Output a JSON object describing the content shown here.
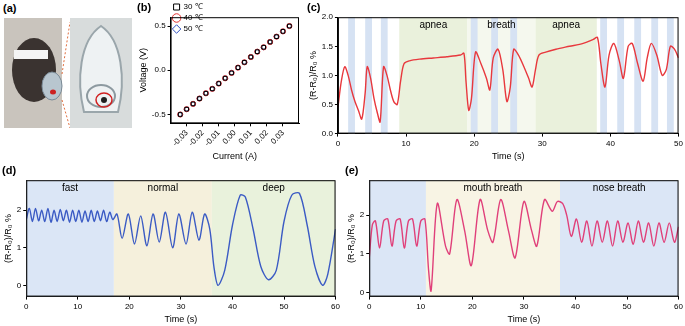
{
  "chart_data": [
    {
      "type": "image",
      "title": "(a)"
    },
    {
      "type": "scatter",
      "title": "(b)",
      "x_label": "Current (A)",
      "y_label": "Voltage (V)",
      "x": [
        -0.034,
        -0.03,
        -0.026,
        -0.022,
        -0.018,
        -0.014,
        -0.01,
        -0.006,
        -0.002,
        0.002,
        0.006,
        0.01,
        0.014,
        0.018,
        0.022,
        0.026,
        0.03,
        0.034
      ],
      "series": [
        {
          "name": "30 ℃",
          "color": "#000000",
          "marker": "square",
          "values": [
            -0.5,
            -0.44,
            -0.38,
            -0.32,
            -0.26,
            -0.21,
            -0.15,
            -0.09,
            -0.03,
            0.03,
            0.09,
            0.15,
            0.21,
            0.26,
            0.32,
            0.38,
            0.44,
            0.5
          ]
        },
        {
          "name": "40 ℃",
          "color": "#e03030",
          "marker": "circle",
          "values": [
            -0.5,
            -0.44,
            -0.38,
            -0.32,
            -0.26,
            -0.21,
            -0.15,
            -0.09,
            -0.03,
            0.03,
            0.09,
            0.15,
            0.21,
            0.26,
            0.32,
            0.38,
            0.44,
            0.5
          ]
        },
        {
          "name": "50 ℃",
          "color": "#3050c0",
          "marker": "diamond",
          "values": [
            -0.5,
            -0.44,
            -0.38,
            -0.32,
            -0.26,
            -0.21,
            -0.15,
            -0.09,
            -0.03,
            0.03,
            0.09,
            0.15,
            0.21,
            0.26,
            0.32,
            0.38,
            0.44,
            0.5
          ]
        }
      ],
      "xlim": [
        -0.04,
        0.04
      ],
      "xticks": [
        -0.03,
        -0.02,
        -0.01,
        {
          "value": 0,
          "label": "0.00"
        },
        0.01,
        0.02,
        0.03
      ],
      "ylim": [
        -0.6,
        0.6
      ],
      "yticks": [
        -0.5,
        {
          "value": 0,
          "label": "0.0"
        },
        0.5
      ],
      "legend": "upper left",
      "grid": false
    },
    {
      "type": "line",
      "title": "(c)",
      "x_label": "Time (s)",
      "y_label": "(R-R₀)/R₀ %",
      "color": "#e8383d",
      "x": [
        0,
        0.5,
        1,
        1.5,
        2,
        2.5,
        3,
        3.5,
        4,
        4.3,
        4.8,
        5.3,
        5.8,
        6.2,
        6.7,
        7.2,
        7.7,
        8.2,
        8.7,
        9.2,
        9.7,
        10.5,
        12,
        14,
        16,
        18,
        18.5,
        18.8,
        19.2,
        19.6,
        20.2,
        21,
        21.8,
        22.3,
        22.8,
        23.5,
        24.2,
        24.8,
        25.3,
        25.8,
        26.5,
        27.3,
        28,
        28.5,
        29,
        29.5,
        30.5,
        32,
        34,
        36,
        37.5,
        38.1,
        38.6,
        39.2,
        39.8,
        40.5,
        41.3,
        41.9,
        42.6,
        43.2,
        44,
        44.8,
        45.4,
        46,
        46.8,
        47.6,
        48.2,
        48.8,
        49.4,
        50
      ],
      "values": [
        0.45,
        0.9,
        1.15,
        1.0,
        0.75,
        0.55,
        0.4,
        0.25,
        0.7,
        1.15,
        0.95,
        0.6,
        0.35,
        0.2,
        1.15,
        1.0,
        0.75,
        0.55,
        0.5,
        0.9,
        1.2,
        1.25,
        1.28,
        1.3,
        1.32,
        1.35,
        1.38,
        0.9,
        0.4,
        0.6,
        1.4,
        1.2,
        0.95,
        0.75,
        1.3,
        1.45,
        1.1,
        0.55,
        0.8,
        1.45,
        1.35,
        1.15,
        0.95,
        0.8,
        1.1,
        1.35,
        1.4,
        1.45,
        1.5,
        1.55,
        1.62,
        1.65,
        1.2,
        0.8,
        1.35,
        1.55,
        1.25,
        0.95,
        1.5,
        1.55,
        1.2,
        0.9,
        1.3,
        1.55,
        1.35,
        1.0,
        1.1,
        1.5,
        1.45,
        1.3
      ],
      "bands": [
        {
          "from": 9,
          "to": 19,
          "label": "apnea",
          "color": "#eaf1dc"
        },
        {
          "from": 19,
          "to": 29,
          "label": "breath",
          "color": "#f5f8ee"
        },
        {
          "from": 29,
          "to": 38,
          "label": "apnea",
          "color": "#eaf1dc"
        },
        {
          "from": 1.5,
          "to": 2.5,
          "color": "#d6e2f3"
        },
        {
          "from": 4,
          "to": 5,
          "color": "#d6e2f3"
        },
        {
          "from": 6.3,
          "to": 7.3,
          "color": "#d6e2f3"
        },
        {
          "from": 19.5,
          "to": 20.5,
          "color": "#d6e2f3"
        },
        {
          "from": 22.5,
          "to": 23.5,
          "color": "#d6e2f3"
        },
        {
          "from": 25.3,
          "to": 26.3,
          "color": "#d6e2f3"
        },
        {
          "from": 38.5,
          "to": 39.5,
          "color": "#d6e2f3"
        },
        {
          "from": 41,
          "to": 42,
          "color": "#d6e2f3"
        },
        {
          "from": 43.5,
          "to": 44.5,
          "color": "#d6e2f3"
        },
        {
          "from": 46,
          "to": 47,
          "color": "#d6e2f3"
        },
        {
          "from": 48.3,
          "to": 49.3,
          "color": "#d6e2f3"
        }
      ],
      "xlim": [
        0,
        50
      ],
      "xticks": [
        0,
        10,
        20,
        30,
        40,
        50
      ],
      "ylim": [
        0,
        2.0
      ],
      "yticks": [
        {
          "value": 0,
          "label": "0.0"
        },
        0.5,
        {
          "value": 1,
          "label": "1.0"
        },
        1.5,
        {
          "value": 2,
          "label": "2.0"
        }
      ],
      "grid": false
    },
    {
      "type": "line",
      "title": "(d)",
      "x_label": "Time (s)",
      "y_label": "(R-R₀)/R₀ %",
      "color": "#3b5bc4",
      "x": [
        0,
        0.6,
        1.2,
        1.8,
        2.4,
        3,
        3.6,
        4.2,
        4.8,
        5.4,
        6,
        6.6,
        7.2,
        7.8,
        8.4,
        9,
        9.6,
        10.2,
        10.8,
        11.4,
        12,
        12.6,
        13.2,
        13.8,
        14.4,
        15,
        15.6,
        16.2,
        16.8,
        17.6,
        18.6,
        19.8,
        21,
        22.2,
        23.4,
        24.6,
        25.8,
        27,
        28.4,
        29.6,
        31,
        32.2,
        33.5,
        34.6,
        35.6,
        36.4,
        37.2,
        38.5,
        40,
        41.5,
        42.5,
        44,
        45.5,
        47,
        48.5,
        50,
        51.5,
        53,
        54.5,
        56,
        57.5,
        58.5,
        60
      ],
      "values": [
        1.75,
        2.05,
        1.7,
        2.05,
        1.72,
        2.0,
        1.7,
        2.05,
        1.68,
        2.0,
        1.7,
        2.02,
        1.72,
        2.0,
        1.68,
        2.0,
        1.7,
        2.0,
        1.68,
        1.98,
        1.7,
        2.0,
        1.7,
        1.98,
        1.72,
        2.0,
        1.7,
        1.95,
        1.75,
        1.9,
        1.25,
        1.9,
        1.1,
        1.85,
        1.05,
        1.9,
        1.15,
        1.95,
        1.0,
        1.9,
        1.1,
        1.95,
        1.2,
        1.9,
        1.5,
        0.5,
        0.0,
        0.4,
        1.6,
        2.4,
        2.35,
        1.5,
        0.5,
        0.15,
        0.4,
        1.7,
        2.4,
        2.45,
        1.6,
        0.5,
        0.0,
        0.3,
        1.5
      ],
      "bands": [
        {
          "from": 0,
          "to": 17,
          "label": "fast",
          "color": "#dbe6f6"
        },
        {
          "from": 17,
          "to": 36,
          "label": "normal",
          "color": "#f5f0dc"
        },
        {
          "from": 36,
          "to": 60,
          "label": "deep",
          "color": "#e9f2dc"
        }
      ],
      "xlim": [
        0,
        60
      ],
      "xticks": [
        0,
        10,
        20,
        30,
        40,
        50,
        60
      ],
      "ylim": [
        -0.3,
        2.8
      ],
      "yticks": [
        0,
        1,
        2
      ],
      "grid": false
    },
    {
      "type": "line",
      "title": "(e)",
      "x_label": "Time (s)",
      "y_label": "(R-R₀)/R₀ %",
      "color": "#e0407a",
      "x": [
        0,
        0.6,
        1.2,
        2,
        2.8,
        3.6,
        4.4,
        5.2,
        6,
        6.8,
        7.6,
        8.4,
        9.2,
        10,
        10.8,
        11.5,
        12,
        13.2,
        14.8,
        15.6,
        17,
        18.5,
        19.8,
        21.5,
        23,
        24,
        25.5,
        27,
        28.3,
        30,
        31.5,
        32.5,
        34,
        35.5,
        36.5,
        37.5,
        38.3,
        39.2,
        40.2,
        41.2,
        42.2,
        43.2,
        44.2,
        45.2,
        46.2,
        47.2,
        48.2,
        49.2,
        50.2,
        51.2,
        52.2,
        53.2,
        54.2,
        55.2,
        56.2,
        57.2,
        58.2,
        59.2,
        60
      ],
      "values": [
        0.9,
        1.75,
        1.85,
        1.15,
        1.85,
        1.9,
        1.2,
        1.85,
        1.9,
        1.15,
        1.85,
        1.9,
        1.2,
        1.85,
        1.9,
        0.6,
        0.05,
        2.3,
        1.2,
        1.0,
        2.4,
        1.6,
        0.7,
        2.4,
        1.6,
        1.3,
        2.4,
        1.6,
        0.9,
        2.35,
        1.6,
        1.2,
        2.4,
        2.1,
        2.35,
        2.3,
        2.0,
        1.45,
        1.9,
        1.3,
        1.85,
        1.2,
        1.85,
        1.3,
        1.85,
        1.2,
        1.85,
        1.3,
        1.8,
        1.25,
        1.85,
        1.3,
        1.8,
        1.2,
        1.8,
        1.3,
        1.8,
        1.3,
        1.7
      ],
      "bands": [
        {
          "from": 0,
          "to": 11,
          "color": "#dbe6f6"
        },
        {
          "from": 11,
          "to": 37,
          "label": "mouth breath",
          "color": "#f8f4e4"
        },
        {
          "from": 37,
          "to": 60,
          "label": "nose breath",
          "color": "#dbe6f6"
        }
      ],
      "xlim": [
        0,
        60
      ],
      "xticks": [
        0,
        10,
        20,
        30,
        40,
        50,
        60
      ],
      "ylim": [
        -0.1,
        2.9
      ],
      "yticks": [
        0,
        1,
        2
      ],
      "grid": false
    }
  ]
}
